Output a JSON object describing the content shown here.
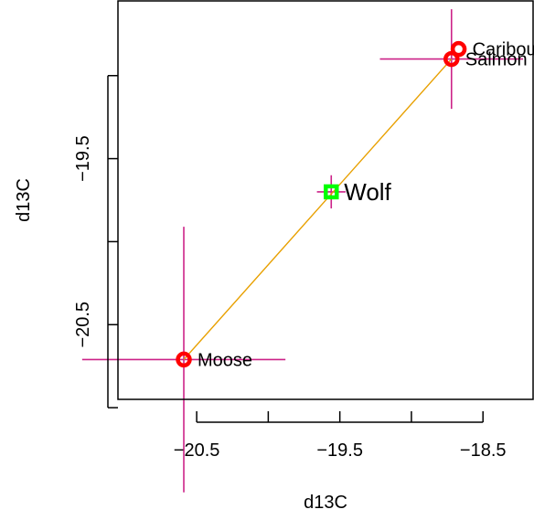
{
  "chart_data": {
    "type": "scatter",
    "title": "",
    "xlabel": "d13C",
    "ylabel": "d13C",
    "xlim": [
      -21.05,
      -18.15
    ],
    "ylim": [
      -20.95,
      -18.55
    ],
    "x_ticks": [
      -20.5,
      -19.5,
      -18.5
    ],
    "y_ticks": [
      -20.5,
      -19.5
    ],
    "x_tick_labels": [
      "−20.5",
      "−19.5",
      "−18.5"
    ],
    "y_tick_labels": [
      "−20.5",
      "−19.5"
    ],
    "y_minor_ticks": [
      -21.0,
      -20.0,
      -19.0
    ],
    "grid": false,
    "colors": {
      "prey": "#ff0000",
      "consumer": "#00ff00",
      "error_bars": "#cc2288",
      "mixing_line": "#e8a000"
    },
    "points": [
      {
        "label": "Caribou",
        "x": -18.67,
        "y": -18.84,
        "x_err": 0.0,
        "y_err": 0.0,
        "group": "prey"
      },
      {
        "label": "Salmon",
        "x": -18.72,
        "y": -18.9,
        "x_err": 0.5,
        "y_err": 0.3,
        "group": "prey"
      },
      {
        "label": "Wolf",
        "x": -19.56,
        "y": -19.7,
        "x_err": 0.1,
        "y_err": 0.1,
        "group": "consumer"
      },
      {
        "label": "Moose",
        "x": -20.59,
        "y": -20.71,
        "x_err": 0.71,
        "y_err": 0.8,
        "group": "prey"
      }
    ],
    "mixing_line": {
      "from": "Moose",
      "to": "Salmon"
    }
  }
}
